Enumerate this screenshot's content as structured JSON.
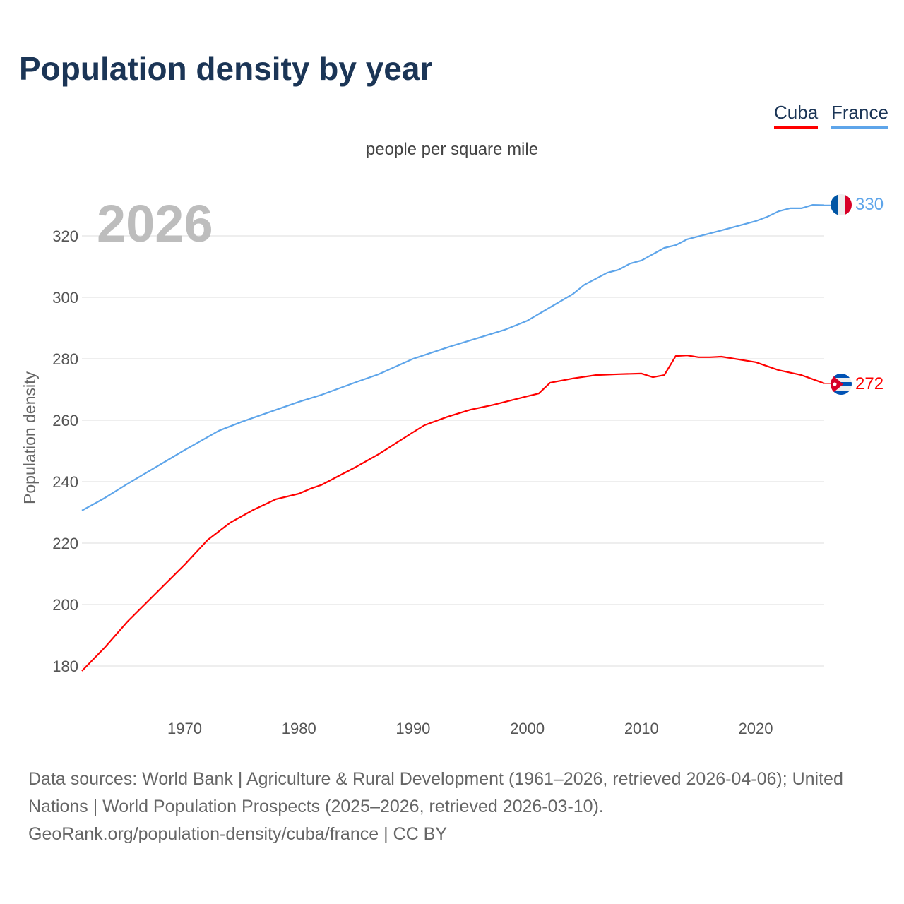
{
  "title": "Population density by year",
  "unit_label": "people per square mile",
  "footer": {
    "sources": "Data sources: World Bank | Agriculture & Rural Development (1961–2026, retrieved 2026-04-06); United Nations | World Population Prospects (2025–2026, retrieved 2026-03-10).",
    "link": "GeoRank.org/population-density/cuba/france | CC BY"
  },
  "chart_data": {
    "type": "line",
    "title": "Population density by year",
    "ylabel": "Population density",
    "xlabel": "",
    "current_year_label": "2026",
    "xlim": [
      1961,
      2026
    ],
    "ylim": [
      165,
      335
    ],
    "x_ticks": [
      1970,
      1980,
      1990,
      2000,
      2010,
      2020
    ],
    "y_ticks": [
      180,
      200,
      220,
      240,
      260,
      280,
      300,
      320
    ],
    "grid": true,
    "legend": "top-right",
    "series": [
      {
        "name": "Cuba",
        "color": "#ff0000",
        "end_label": "272",
        "flag": "cuba-flag",
        "x": [
          1961,
          1963,
          1965,
          1970,
          1972,
          1974,
          1976,
          1978,
          1980,
          1981,
          1982,
          1985,
          1987,
          1990,
          1991,
          1993,
          1995,
          1997,
          2000,
          2001,
          2002,
          2004,
          2006,
          2008,
          2010,
          2011,
          2012,
          2013,
          2014,
          2015,
          2016,
          2017,
          2020,
          2022,
          2024,
          2026
        ],
        "y": [
          178.4,
          186,
          194.5,
          213,
          221,
          226.7,
          230.8,
          234.3,
          236.1,
          237.7,
          239,
          244.8,
          249,
          256.1,
          258.4,
          261.1,
          263.4,
          265,
          267.8,
          268.7,
          272.2,
          273.6,
          274.7,
          275,
          275.2,
          274,
          274.7,
          280.9,
          281.1,
          280.5,
          280.5,
          280.7,
          278.9,
          276.3,
          274.7,
          272
        ]
      },
      {
        "name": "France",
        "color": "#5ea5ea",
        "end_label": "330",
        "flag": "france-flag",
        "x": [
          1961,
          1963,
          1965,
          1967,
          1970,
          1973,
          1975,
          1980,
          1982,
          1985,
          1987,
          1990,
          1993,
          1995,
          1998,
          2000,
          2004,
          2005,
          2007,
          2008,
          2009,
          2010,
          2012,
          2013,
          2014,
          2017,
          2020,
          2021,
          2022,
          2023,
          2024,
          2025,
          2026
        ],
        "y": [
          230.6,
          234.7,
          239.3,
          243.7,
          250.3,
          256.6,
          259.5,
          266,
          268.3,
          272.4,
          275,
          280,
          283.7,
          286,
          289.4,
          292.4,
          301.1,
          304.1,
          308,
          309,
          311,
          312,
          316.1,
          317,
          318.9,
          321.8,
          324.8,
          326.2,
          328,
          329,
          329,
          330.1,
          330
        ]
      }
    ]
  }
}
